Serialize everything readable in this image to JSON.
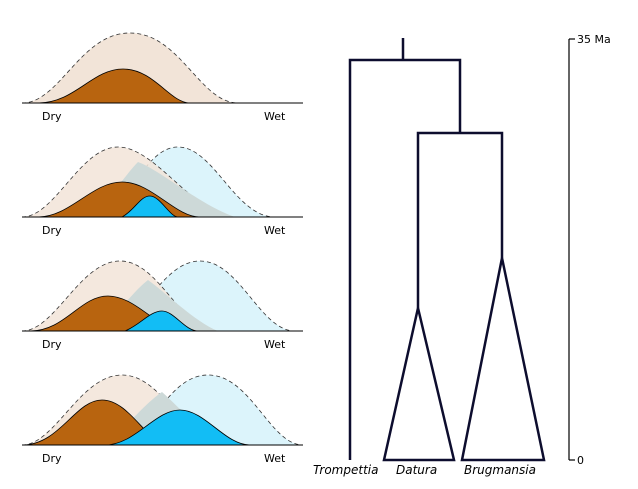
{
  "niche_panels": [
    {
      "left_label": "Dry",
      "right_label": "Wet"
    },
    {
      "left_label": "Dry",
      "right_label": "Wet"
    },
    {
      "left_label": "Dry",
      "right_label": "Wet"
    },
    {
      "left_label": "Dry",
      "right_label": "Wet"
    }
  ],
  "tree": {
    "taxa": [
      "Trompettia",
      "Datura",
      "Brugmansia"
    ]
  },
  "time_axis": {
    "top_label": "35 Ma",
    "bottom_label": "0"
  },
  "colors": {
    "dry_fill": "#f2e4d8",
    "dry_realized": "#b8640f",
    "wet_fill": "#dcf4fb",
    "wet_realized": "#12bdf5",
    "overlap_fill": "#cdd9d8",
    "line": "#000000",
    "tree_line": "#0d0d2e"
  }
}
